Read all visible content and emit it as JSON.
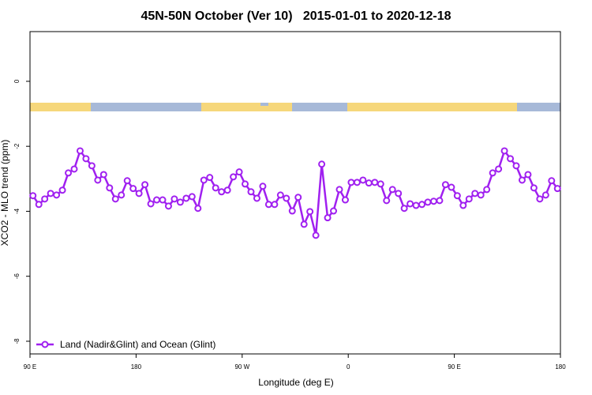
{
  "chart_data": {
    "type": "line",
    "title": "45N-50N October (Ver 10)   2015-01-01 to 2020-12-18",
    "x_label": "Longitude (deg E)",
    "y_label": "XCO2 - MLO trend (ppm)",
    "x": [
      92.5,
      97.5,
      102.5,
      107.5,
      112.5,
      117.5,
      122.5,
      127.5,
      132.5,
      137.5,
      142.5,
      147.5,
      152.5,
      157.5,
      162.5,
      167.5,
      172.5,
      177.5,
      182.5,
      187.5,
      192.5,
      197.5,
      202.5,
      207.5,
      212.5,
      217.5,
      222.5,
      227.5,
      232.5,
      237.5,
      242.5,
      247.5,
      252.5,
      257.5,
      262.5,
      267.5,
      272.5,
      277.5,
      282.5,
      287.5,
      292.5,
      297.5,
      302.5,
      307.5,
      312.5,
      317.5,
      322.5,
      327.5,
      332.5,
      337.5,
      342.5,
      347.5,
      352.5,
      357.5,
      362.5,
      367.5,
      372.5,
      377.5,
      382.5,
      387.5,
      392.5,
      397.5,
      402.5,
      407.5,
      412.5,
      417.5,
      422.5,
      427.5,
      432.5,
      437.5,
      442.5,
      447.5,
      452.5,
      457.5,
      462.5,
      467.5,
      472.5,
      477.5,
      482.5,
      487.5,
      492.5,
      497.5,
      502.5,
      507.5,
      512.5,
      517.5,
      522.5,
      527.5,
      532.5,
      537.5
    ],
    "series": [
      {
        "name": "Land (Nadir&Glint) and Ocean (Glint)",
        "color": "#a020f0",
        "values": [
          -3.52,
          -3.79,
          -3.62,
          -3.45,
          -3.5,
          -3.35,
          -2.82,
          -2.7,
          -2.14,
          -2.38,
          -2.6,
          -3.04,
          -2.87,
          -3.28,
          -3.62,
          -3.5,
          -3.06,
          -3.3,
          -3.45,
          -3.18,
          -3.77,
          -3.65,
          -3.65,
          -3.84,
          -3.62,
          -3.72,
          -3.6,
          -3.55,
          -3.91,
          -3.04,
          -2.96,
          -3.28,
          -3.4,
          -3.35,
          -2.94,
          -2.79,
          -3.16,
          -3.4,
          -3.6,
          -3.23,
          -3.79,
          -3.79,
          -3.5,
          -3.6,
          -3.99,
          -3.57,
          -4.4,
          -4.01,
          -4.74,
          -2.55,
          -4.2,
          -3.99,
          -3.33,
          -3.65,
          -3.11,
          -3.11,
          -3.04,
          -3.13,
          -3.11,
          -3.16,
          -3.67,
          -3.33,
          -3.45,
          -3.91,
          -3.77,
          -3.82,
          -3.79,
          -3.72,
          -3.69,
          -3.67,
          -3.18,
          -3.26,
          -3.52,
          -3.82,
          -3.62,
          -3.45,
          -3.5,
          -3.33,
          -2.82,
          -2.7,
          -2.14,
          -2.38,
          -2.6,
          -3.04,
          -2.87,
          -3.28,
          -3.62,
          -3.5,
          -3.06,
          -3.3
        ]
      }
    ],
    "xlim": [
      90,
      540
    ],
    "xticks": [
      {
        "value": 90,
        "label": "90 E"
      },
      {
        "value": 180,
        "label": "180"
      },
      {
        "value": 270,
        "label": "90 W"
      },
      {
        "value": 360,
        "label": "0"
      },
      {
        "value": 450,
        "label": "90 E"
      },
      {
        "value": 540,
        "label": "180"
      }
    ],
    "ylim": [
      -8.39,
      1.53
    ],
    "yticks": [
      0,
      -2,
      -4,
      -6,
      -8
    ],
    "legend": "bottom-left"
  }
}
